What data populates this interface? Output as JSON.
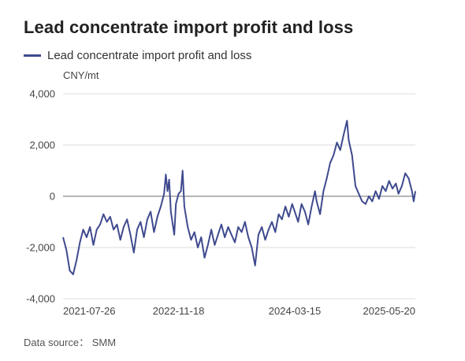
{
  "source_text": "Data source： SMM",
  "chart_data": {
    "type": "line",
    "title": "Lead concentrate import profit and loss",
    "unit": "CNY/mt",
    "series": [
      {
        "name": "Lead concentrate import profit and loss",
        "color": "#3f4a8e",
        "points": [
          [
            "2021-07-26",
            -1600
          ],
          [
            "2021-08-09",
            -2100
          ],
          [
            "2021-08-23",
            -2900
          ],
          [
            "2021-09-06",
            -3050
          ],
          [
            "2021-09-20",
            -2500
          ],
          [
            "2021-10-04",
            -1800
          ],
          [
            "2021-10-18",
            -1300
          ],
          [
            "2021-11-01",
            -1600
          ],
          [
            "2021-11-15",
            -1200
          ],
          [
            "2021-11-29",
            -1900
          ],
          [
            "2021-12-13",
            -1300
          ],
          [
            "2021-12-27",
            -1100
          ],
          [
            "2022-01-10",
            -700
          ],
          [
            "2022-01-24",
            -1000
          ],
          [
            "2022-02-07",
            -800
          ],
          [
            "2022-02-21",
            -1300
          ],
          [
            "2022-03-07",
            -1100
          ],
          [
            "2022-03-21",
            -1700
          ],
          [
            "2022-04-04",
            -1200
          ],
          [
            "2022-04-18",
            -900
          ],
          [
            "2022-05-02",
            -1500
          ],
          [
            "2022-05-16",
            -2200
          ],
          [
            "2022-05-30",
            -1300
          ],
          [
            "2022-06-13",
            -1000
          ],
          [
            "2022-06-27",
            -1600
          ],
          [
            "2022-07-11",
            -900
          ],
          [
            "2022-07-25",
            -600
          ],
          [
            "2022-08-08",
            -1400
          ],
          [
            "2022-08-22",
            -800
          ],
          [
            "2022-09-05",
            -400
          ],
          [
            "2022-09-19",
            100
          ],
          [
            "2022-09-26",
            850
          ],
          [
            "2022-10-03",
            200
          ],
          [
            "2022-10-10",
            650
          ],
          [
            "2022-10-17",
            -600
          ],
          [
            "2022-10-31",
            -1500
          ],
          [
            "2022-11-07",
            -300
          ],
          [
            "2022-11-18",
            100
          ],
          [
            "2022-11-28",
            200
          ],
          [
            "2022-12-05",
            1000
          ],
          [
            "2022-12-12",
            -400
          ],
          [
            "2022-12-26",
            -1200
          ],
          [
            "2023-01-09",
            -1700
          ],
          [
            "2023-01-23",
            -1400
          ],
          [
            "2023-02-06",
            -2000
          ],
          [
            "2023-02-20",
            -1600
          ],
          [
            "2023-03-06",
            -2400
          ],
          [
            "2023-03-20",
            -1900
          ],
          [
            "2023-04-03",
            -1300
          ],
          [
            "2023-04-17",
            -1900
          ],
          [
            "2023-05-01",
            -1500
          ],
          [
            "2023-05-15",
            -1100
          ],
          [
            "2023-05-29",
            -1600
          ],
          [
            "2023-06-12",
            -1200
          ],
          [
            "2023-06-26",
            -1500
          ],
          [
            "2023-07-10",
            -1800
          ],
          [
            "2023-07-24",
            -1200
          ],
          [
            "2023-08-07",
            -1400
          ],
          [
            "2023-08-21",
            -1000
          ],
          [
            "2023-09-04",
            -1600
          ],
          [
            "2023-09-18",
            -2000
          ],
          [
            "2023-10-02",
            -2700
          ],
          [
            "2023-10-16",
            -1500
          ],
          [
            "2023-10-30",
            -1200
          ],
          [
            "2023-11-13",
            -1700
          ],
          [
            "2023-11-27",
            -1300
          ],
          [
            "2023-12-11",
            -1000
          ],
          [
            "2023-12-25",
            -1400
          ],
          [
            "2024-01-08",
            -700
          ],
          [
            "2024-01-22",
            -900
          ],
          [
            "2024-02-05",
            -400
          ],
          [
            "2024-02-19",
            -800
          ],
          [
            "2024-03-04",
            -300
          ],
          [
            "2024-03-15",
            -600
          ],
          [
            "2024-03-29",
            -1000
          ],
          [
            "2024-04-12",
            -300
          ],
          [
            "2024-04-26",
            -600
          ],
          [
            "2024-05-10",
            -1100
          ],
          [
            "2024-05-24",
            -400
          ],
          [
            "2024-06-07",
            200
          ],
          [
            "2024-06-14",
            -200
          ],
          [
            "2024-06-28",
            -700
          ],
          [
            "2024-07-12",
            200
          ],
          [
            "2024-07-26",
            700
          ],
          [
            "2024-08-09",
            1300
          ],
          [
            "2024-08-23",
            1600
          ],
          [
            "2024-09-06",
            2100
          ],
          [
            "2024-09-20",
            1800
          ],
          [
            "2024-10-04",
            2400
          ],
          [
            "2024-10-18",
            2950
          ],
          [
            "2024-10-25",
            2200
          ],
          [
            "2024-11-08",
            1600
          ],
          [
            "2024-11-22",
            400
          ],
          [
            "2024-12-06",
            100
          ],
          [
            "2024-12-20",
            -200
          ],
          [
            "2025-01-03",
            -300
          ],
          [
            "2025-01-17",
            0
          ],
          [
            "2025-01-31",
            -200
          ],
          [
            "2025-02-14",
            200
          ],
          [
            "2025-02-28",
            -100
          ],
          [
            "2025-03-14",
            400
          ],
          [
            "2025-03-28",
            200
          ],
          [
            "2025-04-11",
            600
          ],
          [
            "2025-04-25",
            300
          ],
          [
            "2025-05-09",
            500
          ],
          [
            "2025-05-20",
            100
          ],
          [
            "2025-06-03",
            400
          ],
          [
            "2025-06-17",
            900
          ],
          [
            "2025-07-01",
            700
          ],
          [
            "2025-07-15",
            200
          ],
          [
            "2025-07-22",
            -200
          ],
          [
            "2025-07-29",
            200
          ]
        ]
      }
    ],
    "x_tick_labels": [
      "2021-07-26",
      "2022-11-18",
      "2024-03-15",
      "2025-05-20"
    ],
    "y_ticks": [
      4000,
      2000,
      0,
      -2000,
      -4000
    ],
    "y_tick_labels": [
      "4,000",
      "2,000",
      "0",
      "-2,000",
      "-4,000"
    ],
    "ylim": [
      -4000,
      4000
    ],
    "xlim": [
      "2021-07-26",
      "2025-07-29"
    ],
    "grid": "horizontal",
    "grid_color": "#dcdcdc",
    "zero_line_color": "#8a8a8a",
    "legend_position": "top-left"
  }
}
